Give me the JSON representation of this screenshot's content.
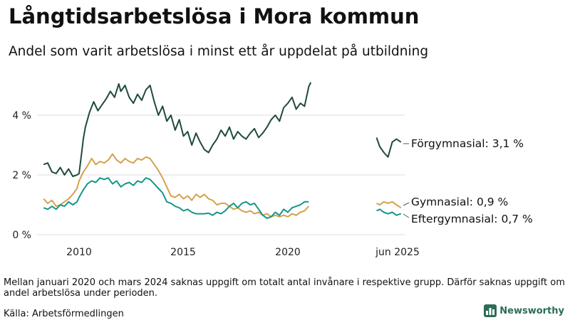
{
  "header": {
    "title": "Långtidsarbetslösa i Mora kommun",
    "subtitle": "Andel som varit arbetslösa i minst ett år uppdelat på utbildning"
  },
  "footer": {
    "note": "Mellan januari 2020 och mars 2024 saknas uppgift om totalt antal invånare i respektive grupp. Därför saknas uppgift om andel arbetslösa under perioden.",
    "source": "Källa: Arbetsförmedlingen",
    "brand": "Newsworthy",
    "brand_icon": "bar-chart-logo-icon"
  },
  "colors": {
    "forgymnasial": "#1f4a3c",
    "gymnasial": "#d4a24c",
    "eftergymnasial": "#16968a",
    "grid": "#dddddd",
    "brand": "#2d6c55"
  },
  "chart_data": {
    "type": "line",
    "y_unit": "%",
    "ylim": [
      0,
      5.4
    ],
    "y_ticks": [
      {
        "value": 0,
        "label": "0 %"
      },
      {
        "value": 2,
        "label": "2 %"
      },
      {
        "value": 4,
        "label": "4 %"
      }
    ],
    "x_ticks": [
      {
        "value": 2010,
        "label": "2010"
      },
      {
        "value": 2015,
        "label": "2015"
      },
      {
        "value": 2020,
        "label": "2020"
      },
      {
        "value": 2025.42,
        "label": "jun 2025"
      }
    ],
    "grid": "horizontal",
    "legend": "direct labels at line ends",
    "series": [
      {
        "key": "forgymnasial",
        "end_label": "Förgymnasial: 3,1 %",
        "segments": [
          [
            [
              2008.3,
              2.35
            ],
            [
              2008.5,
              2.4
            ],
            [
              2008.7,
              2.1
            ],
            [
              2008.9,
              2.05
            ],
            [
              2009.1,
              2.25
            ],
            [
              2009.3,
              2.0
            ],
            [
              2009.5,
              2.2
            ],
            [
              2009.7,
              1.95
            ],
            [
              2009.9,
              2.0
            ],
            [
              2010.0,
              2.05
            ],
            [
              2010.1,
              2.6
            ],
            [
              2010.2,
              3.2
            ],
            [
              2010.3,
              3.6
            ],
            [
              2010.5,
              4.1
            ],
            [
              2010.7,
              4.45
            ],
            [
              2010.9,
              4.15
            ],
            [
              2011.1,
              4.35
            ],
            [
              2011.3,
              4.55
            ],
            [
              2011.5,
              4.8
            ],
            [
              2011.7,
              4.6
            ],
            [
              2011.9,
              5.05
            ],
            [
              2012.0,
              4.8
            ],
            [
              2012.2,
              5.0
            ],
            [
              2012.4,
              4.6
            ],
            [
              2012.6,
              4.4
            ],
            [
              2012.8,
              4.7
            ],
            [
              2013.0,
              4.5
            ],
            [
              2013.2,
              4.85
            ],
            [
              2013.4,
              5.0
            ],
            [
              2013.6,
              4.45
            ],
            [
              2013.8,
              4.0
            ],
            [
              2014.0,
              4.3
            ],
            [
              2014.2,
              3.8
            ],
            [
              2014.4,
              4.0
            ],
            [
              2014.6,
              3.5
            ],
            [
              2014.8,
              3.85
            ],
            [
              2015.0,
              3.3
            ],
            [
              2015.2,
              3.45
            ],
            [
              2015.4,
              3.0
            ],
            [
              2015.6,
              3.4
            ],
            [
              2015.8,
              3.1
            ],
            [
              2016.0,
              2.85
            ],
            [
              2016.2,
              2.75
            ],
            [
              2016.4,
              3.0
            ],
            [
              2016.6,
              3.2
            ],
            [
              2016.8,
              3.5
            ],
            [
              2017.0,
              3.3
            ],
            [
              2017.2,
              3.6
            ],
            [
              2017.4,
              3.2
            ],
            [
              2017.6,
              3.45
            ],
            [
              2017.8,
              3.3
            ],
            [
              2018.0,
              3.2
            ],
            [
              2018.2,
              3.4
            ],
            [
              2018.4,
              3.55
            ],
            [
              2018.6,
              3.25
            ],
            [
              2018.8,
              3.4
            ],
            [
              2019.0,
              3.6
            ],
            [
              2019.2,
              3.85
            ],
            [
              2019.4,
              4.0
            ],
            [
              2019.6,
              3.8
            ],
            [
              2019.8,
              4.25
            ],
            [
              2020.0,
              4.4
            ],
            [
              2020.2,
              4.6
            ],
            [
              2020.4,
              4.2
            ],
            [
              2020.6,
              4.4
            ],
            [
              2020.8,
              4.3
            ],
            [
              2021.0,
              4.95
            ],
            [
              2021.1,
              5.1
            ]
          ],
          [
            [
              2024.25,
              3.25
            ],
            [
              2024.4,
              2.95
            ],
            [
              2024.6,
              2.75
            ],
            [
              2024.8,
              2.6
            ],
            [
              2025.0,
              3.1
            ],
            [
              2025.2,
              3.2
            ],
            [
              2025.42,
              3.1
            ]
          ]
        ]
      },
      {
        "key": "gymnasial",
        "end_label": "Gymnasial: 0,9 %",
        "segments": [
          [
            [
              2008.3,
              1.2
            ],
            [
              2008.5,
              1.05
            ],
            [
              2008.7,
              1.15
            ],
            [
              2008.9,
              0.95
            ],
            [
              2009.1,
              1.0
            ],
            [
              2009.3,
              1.1
            ],
            [
              2009.5,
              1.2
            ],
            [
              2009.7,
              1.35
            ],
            [
              2009.9,
              1.55
            ],
            [
              2010.0,
              1.8
            ],
            [
              2010.2,
              2.1
            ],
            [
              2010.4,
              2.3
            ],
            [
              2010.6,
              2.55
            ],
            [
              2010.8,
              2.35
            ],
            [
              2011.0,
              2.45
            ],
            [
              2011.2,
              2.4
            ],
            [
              2011.4,
              2.5
            ],
            [
              2011.6,
              2.7
            ],
            [
              2011.8,
              2.5
            ],
            [
              2012.0,
              2.4
            ],
            [
              2012.2,
              2.55
            ],
            [
              2012.4,
              2.45
            ],
            [
              2012.6,
              2.4
            ],
            [
              2012.8,
              2.55
            ],
            [
              2013.0,
              2.5
            ],
            [
              2013.2,
              2.6
            ],
            [
              2013.4,
              2.55
            ],
            [
              2013.6,
              2.35
            ],
            [
              2013.8,
              2.15
            ],
            [
              2014.0,
              1.9
            ],
            [
              2014.2,
              1.6
            ],
            [
              2014.4,
              1.3
            ],
            [
              2014.6,
              1.25
            ],
            [
              2014.8,
              1.35
            ],
            [
              2015.0,
              1.2
            ],
            [
              2015.2,
              1.3
            ],
            [
              2015.4,
              1.15
            ],
            [
              2015.6,
              1.35
            ],
            [
              2015.8,
              1.25
            ],
            [
              2016.0,
              1.35
            ],
            [
              2016.2,
              1.2
            ],
            [
              2016.4,
              1.15
            ],
            [
              2016.6,
              1.0
            ],
            [
              2016.8,
              1.05
            ],
            [
              2017.0,
              1.05
            ],
            [
              2017.2,
              0.95
            ],
            [
              2017.4,
              0.85
            ],
            [
              2017.6,
              0.9
            ],
            [
              2017.8,
              0.8
            ],
            [
              2018.0,
              0.75
            ],
            [
              2018.2,
              0.8
            ],
            [
              2018.4,
              0.7
            ],
            [
              2018.6,
              0.75
            ],
            [
              2018.8,
              0.65
            ],
            [
              2019.0,
              0.7
            ],
            [
              2019.2,
              0.6
            ],
            [
              2019.4,
              0.65
            ],
            [
              2019.6,
              0.6
            ],
            [
              2019.8,
              0.65
            ],
            [
              2020.0,
              0.6
            ],
            [
              2020.2,
              0.7
            ],
            [
              2020.4,
              0.65
            ],
            [
              2020.6,
              0.75
            ],
            [
              2020.8,
              0.8
            ],
            [
              2021.0,
              0.95
            ]
          ],
          [
            [
              2024.25,
              1.05
            ],
            [
              2024.4,
              1.0
            ],
            [
              2024.6,
              1.1
            ],
            [
              2024.8,
              1.05
            ],
            [
              2025.0,
              1.1
            ],
            [
              2025.2,
              1.0
            ],
            [
              2025.42,
              0.9
            ]
          ]
        ]
      },
      {
        "key": "eftergymnasial",
        "end_label": "Eftergymnasial: 0,7 %",
        "segments": [
          [
            [
              2008.3,
              0.9
            ],
            [
              2008.5,
              0.85
            ],
            [
              2008.7,
              0.95
            ],
            [
              2008.9,
              0.85
            ],
            [
              2009.1,
              1.0
            ],
            [
              2009.3,
              0.95
            ],
            [
              2009.5,
              1.1
            ],
            [
              2009.7,
              1.0
            ],
            [
              2009.9,
              1.1
            ],
            [
              2010.0,
              1.25
            ],
            [
              2010.2,
              1.5
            ],
            [
              2010.4,
              1.7
            ],
            [
              2010.6,
              1.8
            ],
            [
              2010.8,
              1.75
            ],
            [
              2011.0,
              1.9
            ],
            [
              2011.2,
              1.85
            ],
            [
              2011.4,
              1.9
            ],
            [
              2011.6,
              1.7
            ],
            [
              2011.8,
              1.8
            ],
            [
              2012.0,
              1.6
            ],
            [
              2012.2,
              1.7
            ],
            [
              2012.4,
              1.75
            ],
            [
              2012.6,
              1.65
            ],
            [
              2012.8,
              1.8
            ],
            [
              2013.0,
              1.75
            ],
            [
              2013.2,
              1.9
            ],
            [
              2013.4,
              1.85
            ],
            [
              2013.6,
              1.7
            ],
            [
              2013.8,
              1.55
            ],
            [
              2014.0,
              1.4
            ],
            [
              2014.2,
              1.1
            ],
            [
              2014.4,
              1.05
            ],
            [
              2014.6,
              0.95
            ],
            [
              2014.8,
              0.9
            ],
            [
              2015.0,
              0.8
            ],
            [
              2015.2,
              0.85
            ],
            [
              2015.4,
              0.75
            ],
            [
              2015.6,
              0.7
            ],
            [
              2015.8,
              0.7
            ],
            [
              2016.0,
              0.7
            ],
            [
              2016.2,
              0.72
            ],
            [
              2016.4,
              0.65
            ],
            [
              2016.6,
              0.75
            ],
            [
              2016.8,
              0.7
            ],
            [
              2017.0,
              0.8
            ],
            [
              2017.2,
              0.95
            ],
            [
              2017.4,
              1.05
            ],
            [
              2017.6,
              0.9
            ],
            [
              2017.8,
              1.05
            ],
            [
              2018.0,
              1.1
            ],
            [
              2018.2,
              1.0
            ],
            [
              2018.4,
              1.05
            ],
            [
              2018.6,
              0.85
            ],
            [
              2018.8,
              0.65
            ],
            [
              2019.0,
              0.55
            ],
            [
              2019.2,
              0.6
            ],
            [
              2019.4,
              0.75
            ],
            [
              2019.6,
              0.65
            ],
            [
              2019.8,
              0.85
            ],
            [
              2020.0,
              0.75
            ],
            [
              2020.2,
              0.9
            ],
            [
              2020.4,
              0.95
            ],
            [
              2020.6,
              1.0
            ],
            [
              2020.8,
              1.1
            ],
            [
              2021.0,
              1.1
            ]
          ],
          [
            [
              2024.25,
              0.8
            ],
            [
              2024.4,
              0.85
            ],
            [
              2024.6,
              0.75
            ],
            [
              2024.8,
              0.7
            ],
            [
              2025.0,
              0.75
            ],
            [
              2025.2,
              0.65
            ],
            [
              2025.42,
              0.7
            ]
          ]
        ]
      }
    ]
  }
}
